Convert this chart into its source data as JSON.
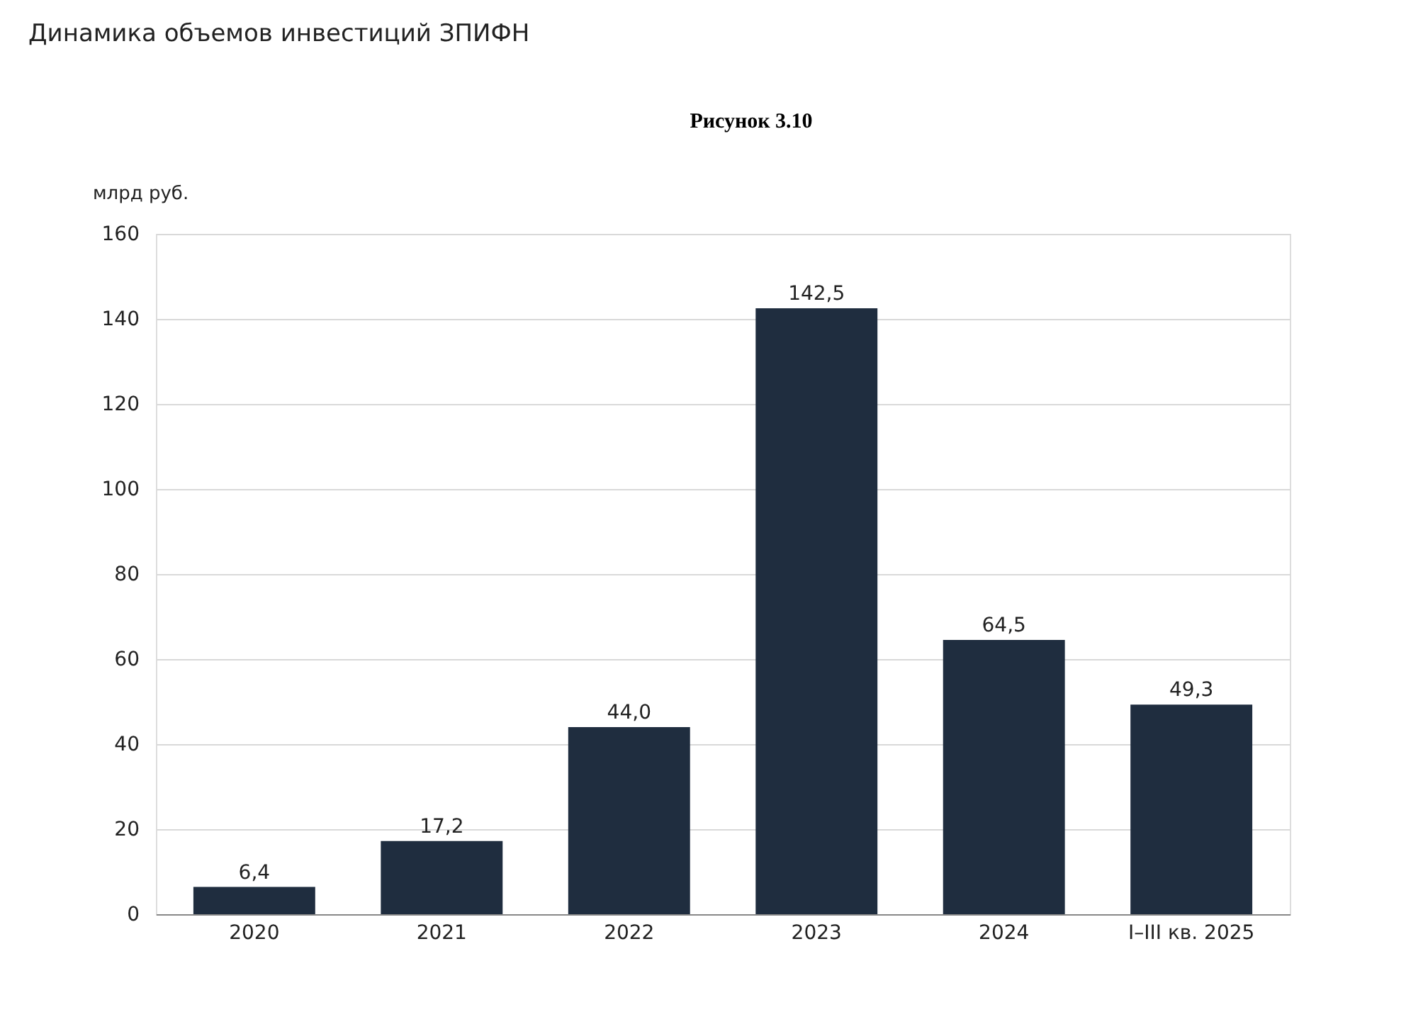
{
  "chart_data": {
    "type": "bar",
    "title": "Динамика объемов инвестиций ЗПИФН",
    "ylabel": "млрд руб.",
    "annotations": [
      "Рисунок 3.10"
    ],
    "categories": [
      "2020",
      "2021",
      "2022",
      "2023",
      "2024",
      "I–III кв. 2025"
    ],
    "values": [
      6.4,
      17.2,
      44.0,
      142.5,
      64.5,
      49.3
    ],
    "value_labels": [
      "6,4",
      "17,2",
      "44,0",
      "142,5",
      "64,5",
      "49,3"
    ],
    "color": "#1f2d3f",
    "ylim": [
      0,
      160
    ],
    "yticks": [
      0,
      20,
      40,
      60,
      80,
      100,
      120,
      140,
      160
    ],
    "grid": "y"
  }
}
